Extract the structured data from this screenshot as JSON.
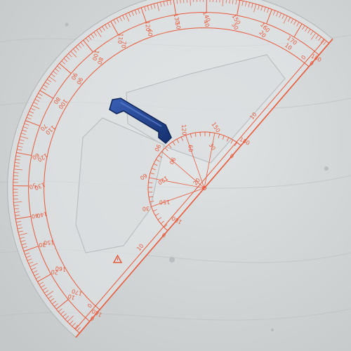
{
  "photo": {
    "colors": {
      "background": "#d5d8d8",
      "marking": "#e85a3c",
      "handle": "#1e3f8a"
    },
    "outer_scale_outer_ring": [
      "180",
      "170",
      "160",
      "150",
      "140",
      "130",
      "120",
      "110",
      "100",
      "90",
      "80",
      "70",
      "60",
      "50",
      "40",
      "30",
      "20",
      "10",
      "0"
    ],
    "outer_scale_inner_ring": [
      "0",
      "10",
      "20",
      "30",
      "40",
      "50",
      "60",
      "70",
      "80",
      "90",
      "100",
      "110",
      "120",
      "130",
      "140",
      "150",
      "160",
      "170",
      "180"
    ],
    "inner_scale_outer_ring": [
      "180",
      "150",
      "120",
      "90",
      "60",
      "30",
      "0"
    ],
    "inner_scale_inner_ring": [
      "0",
      "30",
      "60",
      "90",
      "120",
      "150",
      "180"
    ],
    "edge_labels": [
      "0",
      "10",
      "20",
      "10",
      "0"
    ],
    "handle_icon": "handle-icon",
    "warning_icon": "warning-triangle-icon"
  }
}
